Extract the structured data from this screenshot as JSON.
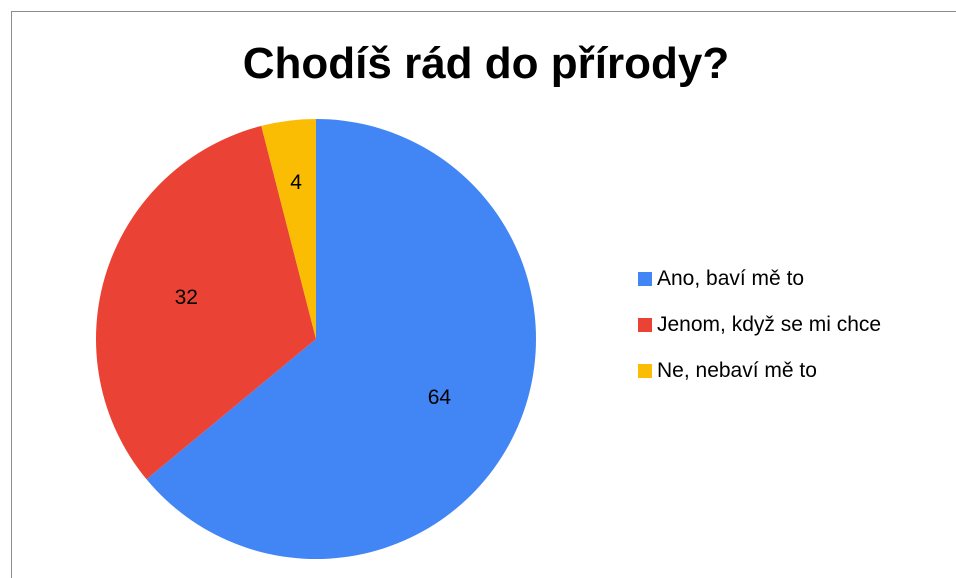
{
  "chart_data": {
    "type": "pie",
    "title": "Chodíš rád do přírody?",
    "categories": [
      "Ano, baví mě to",
      "Jenom, když se mi chce",
      "Ne, nebaví mě to"
    ],
    "values": [
      64,
      32,
      4
    ],
    "colors": [
      "#4285f4",
      "#ea4335",
      "#fbbc04"
    ],
    "data_labels": [
      "64",
      "32",
      "4"
    ],
    "legend": "right",
    "start_angle_deg": 0,
    "direction": "clockwise"
  }
}
